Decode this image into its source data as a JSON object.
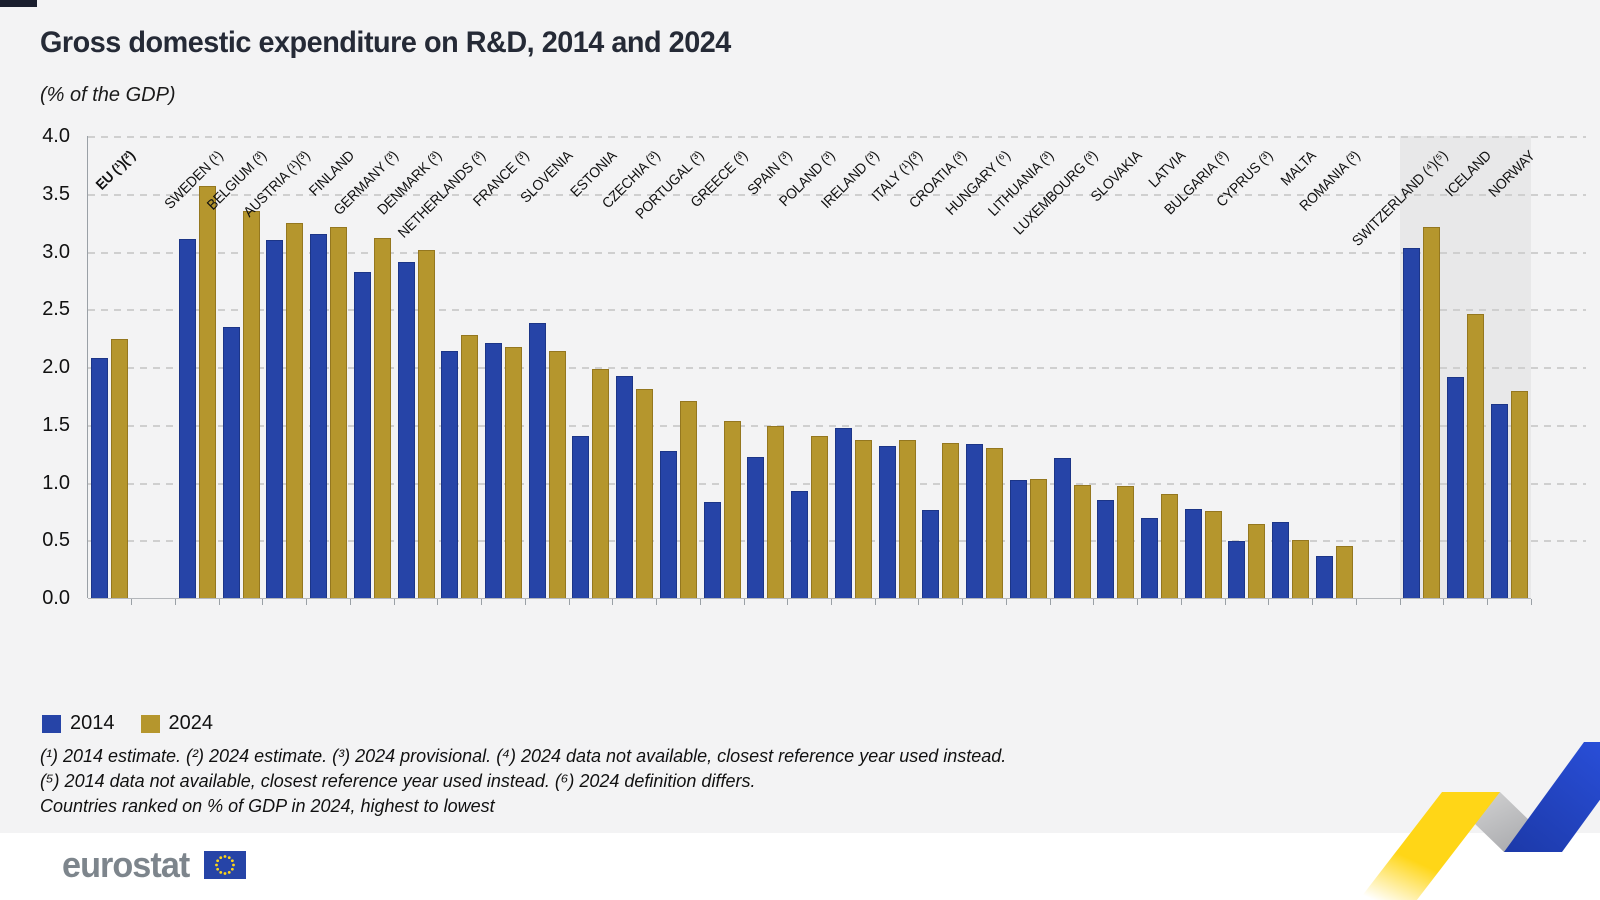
{
  "page": {
    "title": "Gross domestic expenditure on R&D, 2014 and 2024",
    "subtitle": "(% of the GDP)"
  },
  "legend": {
    "items": [
      {
        "label": "2014",
        "color": "#2644a7"
      },
      {
        "label": "2024",
        "color": "#b5962d"
      }
    ]
  },
  "footnotes": [
    "(¹) 2014 estimate. (²) 2024 estimate. (³) 2024 provisional. (⁴) 2024 data not available, closest reference year used instead.",
    "(⁵) 2014 data not available, closest reference year used instead. (⁶) 2024 definition differs.",
    "Countries ranked on % of GDP in 2024, highest to lowest"
  ],
  "footer": {
    "logo_text": "eurostat"
  },
  "colors": {
    "bar_2014": "#2644a7",
    "bar_2024": "#b5962d",
    "background": "#f3f3f4",
    "shaded_band": "#e8e8e9",
    "gridline": "#cfcfcf"
  },
  "chart_data": {
    "type": "bar",
    "title": "Gross domestic expenditure on R&D, 2014 and 2024",
    "subtitle": "(% of the GDP)",
    "ylabel": "% of the GDP",
    "ylim": [
      0,
      4
    ],
    "ytick_step": 0.5,
    "ytick_labels": [
      "4.0",
      "3.5",
      "3.0",
      "2.5",
      "2.0",
      "1.5",
      "1.0",
      "0.5",
      "0.0"
    ],
    "grid": "dashed-horizontal",
    "legend_position": "bottom-left",
    "series_names": [
      "2014",
      "2024"
    ],
    "groups": [
      {
        "label": "EU (¹)(²)",
        "v2014": 2.08,
        "v2024": 2.24,
        "bold": true
      },
      {
        "gap": true
      },
      {
        "label": "SWEDEN (¹)",
        "v2014": 3.11,
        "v2024": 3.57
      },
      {
        "label": "BELGIUM (³)",
        "v2014": 2.35,
        "v2024": 3.35
      },
      {
        "label": "AUSTRIA (¹)(³)",
        "v2014": 3.1,
        "v2024": 3.25
      },
      {
        "label": "FINLAND",
        "v2014": 3.15,
        "v2024": 3.21
      },
      {
        "label": "GERMANY (³)",
        "v2014": 2.82,
        "v2024": 3.12
      },
      {
        "label": "DENMARK (³)",
        "v2014": 2.91,
        "v2024": 3.01
      },
      {
        "label": "NETHERLANDS (³)",
        "v2014": 2.14,
        "v2024": 2.28
      },
      {
        "label": "FRANCE (³)",
        "v2014": 2.21,
        "v2024": 2.17
      },
      {
        "label": "SLOVENIA",
        "v2014": 2.38,
        "v2024": 2.14
      },
      {
        "label": "ESTONIA",
        "v2014": 1.4,
        "v2024": 1.98
      },
      {
        "label": "CZECHIA (³)",
        "v2014": 1.92,
        "v2024": 1.81
      },
      {
        "label": "PORTUGAL (³)",
        "v2014": 1.27,
        "v2024": 1.71
      },
      {
        "label": "GREECE (³)",
        "v2014": 0.83,
        "v2024": 1.53
      },
      {
        "label": "SPAIN (³)",
        "v2014": 1.22,
        "v2024": 1.49
      },
      {
        "label": "POLAND (³)",
        "v2014": 0.93,
        "v2024": 1.4
      },
      {
        "label": "IRELAND (³)",
        "v2014": 1.47,
        "v2024": 1.37
      },
      {
        "label": "ITALY (¹)(³)",
        "v2014": 1.32,
        "v2024": 1.37
      },
      {
        "label": "CROATIA (³)",
        "v2014": 0.76,
        "v2024": 1.34
      },
      {
        "label": "HUNGARY (⁶)",
        "v2014": 1.33,
        "v2024": 1.3
      },
      {
        "label": "LITHUANIA (³)",
        "v2014": 1.02,
        "v2024": 1.03
      },
      {
        "label": "LUXEMBOURG (³)",
        "v2014": 1.21,
        "v2024": 0.98
      },
      {
        "label": "SLOVAKIA",
        "v2014": 0.85,
        "v2024": 0.97
      },
      {
        "label": "LATVIA",
        "v2014": 0.69,
        "v2024": 0.9
      },
      {
        "label": "BULGARIA (³)",
        "v2014": 0.77,
        "v2024": 0.75
      },
      {
        "label": "CYPRUS (³)",
        "v2014": 0.49,
        "v2024": 0.64
      },
      {
        "label": "MALTA",
        "v2014": 0.66,
        "v2024": 0.5
      },
      {
        "label": "ROMANIA (³)",
        "v2014": 0.36,
        "v2024": 0.45
      },
      {
        "gap": true
      },
      {
        "label": "SWITZERLAND (⁴)(⁵)",
        "v2014": 3.03,
        "v2024": 3.21,
        "shaded": true
      },
      {
        "label": "ICELAND",
        "v2014": 1.91,
        "v2024": 2.46,
        "shaded": true
      },
      {
        "label": "NORWAY",
        "v2014": 1.68,
        "v2024": 1.79,
        "shaded": true
      }
    ]
  }
}
